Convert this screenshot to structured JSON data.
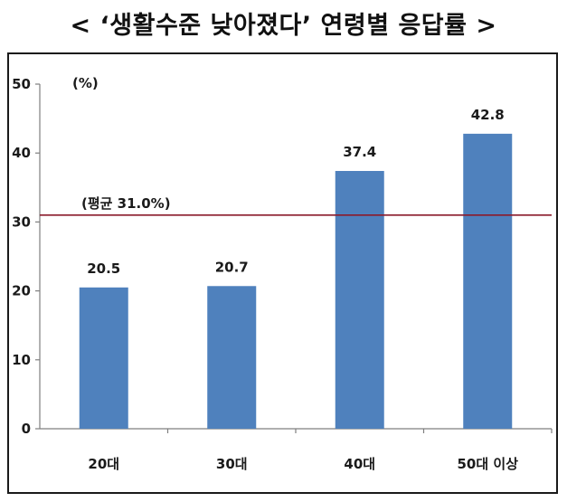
{
  "title": "< ‘생활수준 낮아졌다’ 연령별 응답률 >",
  "chart_data": {
    "type": "bar",
    "categories": [
      "20대",
      "30대",
      "40대",
      "50대 이상"
    ],
    "values": [
      20.5,
      20.7,
      37.4,
      42.8
    ],
    "value_labels": [
      "20.5",
      "20.7",
      "37.4",
      "42.8"
    ],
    "yunit": "(%)",
    "ylim": [
      0,
      50
    ],
    "yticks": [
      "0",
      "10",
      "20",
      "30",
      "40",
      "50"
    ],
    "average": {
      "value": 31.0,
      "label": "(평균 31.0%)"
    },
    "bar_color": "#4f81bd",
    "average_line_color": "#8b1a2b",
    "grid": false,
    "legend": "none"
  }
}
